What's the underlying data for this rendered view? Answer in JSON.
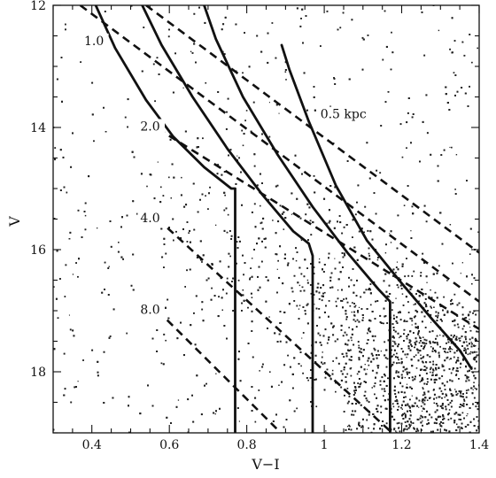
{
  "chart_data": {
    "type": "scatter",
    "title": "",
    "xlabel": "V−I",
    "ylabel": "V",
    "xlim": [
      0.3,
      1.4
    ],
    "ylim": [
      19.0,
      12.0
    ],
    "y_inverted": true,
    "xticks": [
      0.4,
      0.6,
      0.8,
      1.0,
      1.2,
      1.4
    ],
    "xtick_labels": [
      "0.4",
      "0.6",
      "0.8",
      "1",
      "1.2",
      "1.4"
    ],
    "yticks": [
      12,
      14,
      16,
      18
    ],
    "ytick_labels": [
      "12",
      "14",
      "16",
      "18"
    ],
    "grid": false,
    "legend": "none",
    "scatter_note": "field star distribution, sparse at blue/bright end, densest near V-I 1.2-1.4, V 17.5-19",
    "dashed_lines": [
      {
        "label": "0.5 kpc",
        "points": [
          [
            0.54,
            12.0
          ],
          [
            1.4,
            16.05
          ]
        ]
      },
      {
        "label": "1.0",
        "points": [
          [
            0.37,
            12.0
          ],
          [
            1.4,
            16.85
          ]
        ]
      },
      {
        "label": "2.0",
        "points": [
          [
            0.57,
            14.02
          ],
          [
            1.4,
            17.3
          ]
        ]
      },
      {
        "label": "4.0",
        "points": [
          [
            0.57,
            15.5
          ],
          [
            1.17,
            18.97
          ]
        ]
      },
      {
        "label": "8.0",
        "points": [
          [
            0.57,
            17.0
          ],
          [
            0.88,
            18.95
          ]
        ]
      }
    ],
    "solid_curves": [
      {
        "points": [
          [
            0.41,
            12.0
          ],
          [
            0.46,
            12.7
          ],
          [
            0.54,
            13.55
          ],
          [
            0.61,
            14.15
          ],
          [
            0.69,
            14.65
          ],
          [
            0.76,
            15.0
          ],
          [
            0.77,
            15.0
          ],
          [
            0.77,
            19.0
          ]
        ]
      },
      {
        "points": [
          [
            0.53,
            12.0
          ],
          [
            0.58,
            12.65
          ],
          [
            0.66,
            13.5
          ],
          [
            0.75,
            14.35
          ],
          [
            0.84,
            15.1
          ],
          [
            0.92,
            15.7
          ],
          [
            0.96,
            15.9
          ],
          [
            0.97,
            16.1
          ],
          [
            0.97,
            19.0
          ]
        ]
      },
      {
        "points": [
          [
            0.69,
            12.0
          ],
          [
            0.72,
            12.55
          ],
          [
            0.79,
            13.5
          ],
          [
            0.88,
            14.45
          ],
          [
            0.97,
            15.3
          ],
          [
            1.06,
            16.05
          ],
          [
            1.14,
            16.65
          ],
          [
            1.17,
            16.85
          ],
          [
            1.17,
            19.0
          ]
        ]
      },
      {
        "points": [
          [
            0.89,
            12.65
          ],
          [
            0.91,
            13.05
          ],
          [
            0.96,
            13.9
          ],
          [
            1.03,
            14.95
          ],
          [
            1.11,
            15.85
          ],
          [
            1.2,
            16.55
          ],
          [
            1.28,
            17.15
          ],
          [
            1.35,
            17.65
          ],
          [
            1.38,
            17.95
          ]
        ]
      }
    ],
    "annotations": [
      {
        "text": "0.5 kpc",
        "x": 0.99,
        "y": 13.85
      },
      {
        "text": "1.0",
        "x": 0.38,
        "y": 12.65
      },
      {
        "text": "2.0",
        "x": 0.525,
        "y": 14.05
      },
      {
        "text": "4.0",
        "x": 0.525,
        "y": 15.55
      },
      {
        "text": "8.0",
        "x": 0.525,
        "y": 17.05
      }
    ]
  }
}
